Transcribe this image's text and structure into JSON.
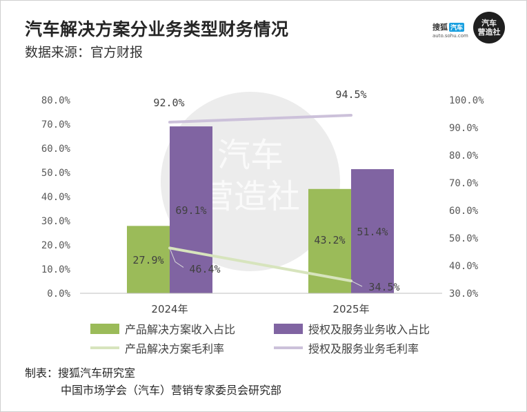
{
  "header": {
    "title": "汽车解决方案分业务类型财务情况",
    "subtitle": "数据来源：官方财报"
  },
  "branding": {
    "sohu_name": "搜狐",
    "sohu_badge": "汽车",
    "sohu_url": "auto.sohu.com",
    "logo_line1": "汽车",
    "logo_line2": "营造社",
    "watermark_line1": "汽车",
    "watermark_line2": "营造社"
  },
  "chart_data": {
    "type": "bar",
    "categories": [
      "2024年",
      "2025年"
    ],
    "series": [
      {
        "name": "产品解决方案收入占比",
        "kind": "bar",
        "axis": "left",
        "color": "#9bbb59",
        "values": [
          27.9,
          43.2
        ],
        "labels": [
          "27.9%",
          "43.2%"
        ]
      },
      {
        "name": "授权及服务业务收入占比",
        "kind": "bar",
        "axis": "left",
        "color": "#8064a2",
        "values": [
          69.1,
          51.4
        ],
        "labels": [
          "69.1%",
          "51.4%"
        ]
      },
      {
        "name": "产品解决方案毛利率",
        "kind": "line",
        "axis": "right",
        "color": "#d7e4bd",
        "values": [
          46.4,
          34.5
        ],
        "labels": [
          "46.4%",
          "34.5%"
        ]
      },
      {
        "name": "授权及服务业务毛利率",
        "kind": "line",
        "axis": "right",
        "color": "#ccc1da",
        "values": [
          92.0,
          94.5
        ],
        "labels": [
          "92.0%",
          "94.5%"
        ]
      }
    ],
    "left_axis": {
      "ylim": [
        0,
        80
      ],
      "ticks": [
        "0.0%",
        "10.0%",
        "20.0%",
        "30.0%",
        "40.0%",
        "50.0%",
        "60.0%",
        "70.0%",
        "80.0%"
      ]
    },
    "right_axis": {
      "ylim": [
        30,
        100
      ],
      "ticks": [
        "30.0%",
        "40.0%",
        "50.0%",
        "60.0%",
        "70.0%",
        "80.0%",
        "90.0%",
        "100.0%"
      ]
    },
    "grid": false,
    "legend_position": "bottom"
  },
  "footer": {
    "credit_label": "制表：",
    "credit_line1": "搜狐汽车研究室",
    "credit_line2": "中国市场学会（汽车）营销专家委员会研究部"
  }
}
